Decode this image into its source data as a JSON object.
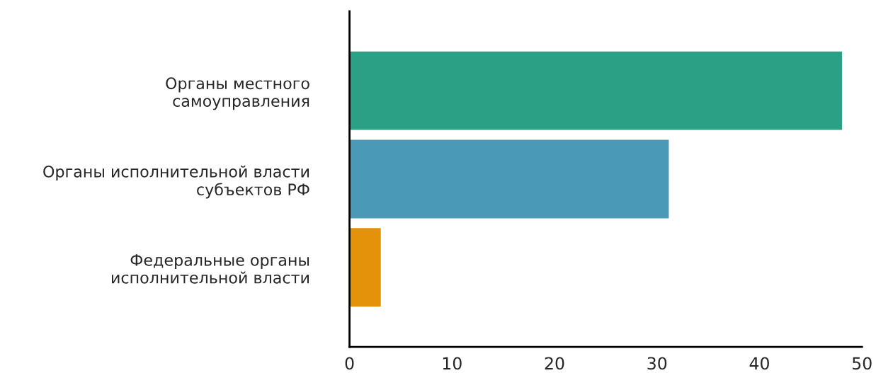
{
  "chart_data": {
    "type": "bar",
    "orientation": "horizontal",
    "categories": [
      "Органы местного\nсамоуправления",
      "Органы исполнительной власти\nсубъектов РФ",
      "Федеральные органы\nисполнительной власти"
    ],
    "values": [
      48.1,
      31.2,
      3.1
    ],
    "colors": [
      "#2ca084",
      "#4a9ab7",
      "#e39209"
    ],
    "xlim": [
      0,
      50
    ],
    "xticks": [
      0,
      10,
      20,
      30,
      40,
      50
    ],
    "grid": false
  }
}
